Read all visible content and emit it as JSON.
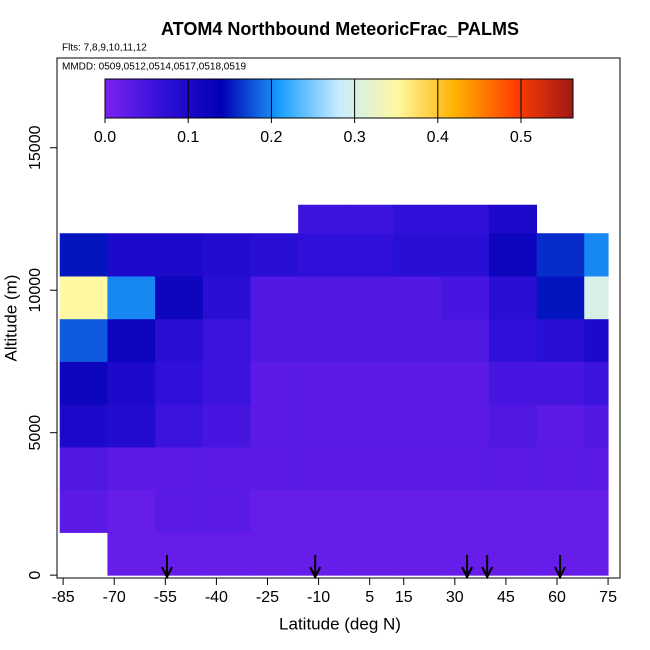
{
  "chart_data": {
    "type": "heatmap",
    "title": "ATOM4 Northbound MeteoricFrac_PALMS",
    "subtitle": "Flts: 7,8,9,10,11,12",
    "annotation": "MMDD: 0509,0512,0514,0517,0518,0519",
    "xlabel": "Latitude (deg N)",
    "ylabel": "Altitude (m)",
    "xlim": [
      -86.8,
      78.5
    ],
    "xticks": [
      -85,
      -70,
      -55,
      -40,
      -25,
      -10,
      5,
      15,
      30,
      45,
      60,
      75
    ],
    "ylim": [
      -100,
      18150
    ],
    "yticks": [
      0,
      5000,
      10000,
      15000
    ],
    "x_edges": [
      -86,
      -72,
      -58,
      -44,
      -30,
      -16,
      -2,
      12,
      26,
      40,
      54,
      68,
      75
    ],
    "y_edges": [
      0,
      1500,
      3000,
      4500,
      6000,
      7500,
      9000,
      10500,
      12000,
      13000
    ],
    "values": [
      [
        null,
        0.02,
        0.02,
        0.02,
        0.02,
        0.02,
        0.02,
        0.02,
        0.02,
        0.02,
        0.02,
        0.02
      ],
      [
        0.03,
        0.02,
        0.03,
        0.03,
        0.02,
        0.02,
        0.02,
        0.02,
        0.02,
        0.02,
        0.02,
        0.02
      ],
      [
        0.04,
        0.03,
        0.03,
        0.03,
        0.03,
        0.03,
        0.03,
        0.03,
        0.03,
        0.03,
        0.03,
        0.03
      ],
      [
        0.1,
        0.09,
        0.06,
        0.05,
        0.03,
        0.03,
        0.03,
        0.03,
        0.03,
        0.04,
        0.03,
        0.04
      ],
      [
        0.12,
        0.1,
        0.07,
        0.06,
        0.03,
        0.03,
        0.03,
        0.03,
        0.03,
        0.05,
        0.05,
        0.06
      ],
      [
        0.18,
        0.12,
        0.08,
        0.06,
        0.04,
        0.04,
        0.04,
        0.04,
        0.04,
        0.07,
        0.08,
        0.1
      ],
      [
        0.35,
        0.2,
        0.12,
        0.08,
        0.04,
        0.04,
        0.04,
        0.04,
        0.05,
        0.08,
        0.15,
        0.3
      ],
      [
        0.15,
        0.1,
        0.1,
        0.09,
        0.08,
        0.07,
        0.07,
        0.08,
        0.08,
        0.12,
        0.16,
        0.2
      ],
      [
        null,
        null,
        null,
        null,
        null,
        0.06,
        0.06,
        0.07,
        0.07,
        0.1,
        null,
        null
      ]
    ],
    "arrows": [
      -54.5,
      -11,
      33.6,
      39.5,
      60.9
    ],
    "clim": [
      0,
      0.5625
    ],
    "cticks": [
      {
        "value": 0,
        "label": "0.0"
      },
      {
        "value": 0.1,
        "label": "0.1"
      },
      {
        "value": 0.2,
        "label": "0.2"
      },
      {
        "value": 0.3,
        "label": "0.3"
      },
      {
        "value": 0.4,
        "label": "0.4"
      },
      {
        "value": 0.5,
        "label": "0.5"
      }
    ],
    "colors": [
      "#7b22f0",
      "#3010d8",
      "#0000b4",
      "#1aa0ff",
      "#c8ecff",
      "#fff8a0",
      "#ffb000",
      "#ff4000",
      "#a01818"
    ]
  }
}
